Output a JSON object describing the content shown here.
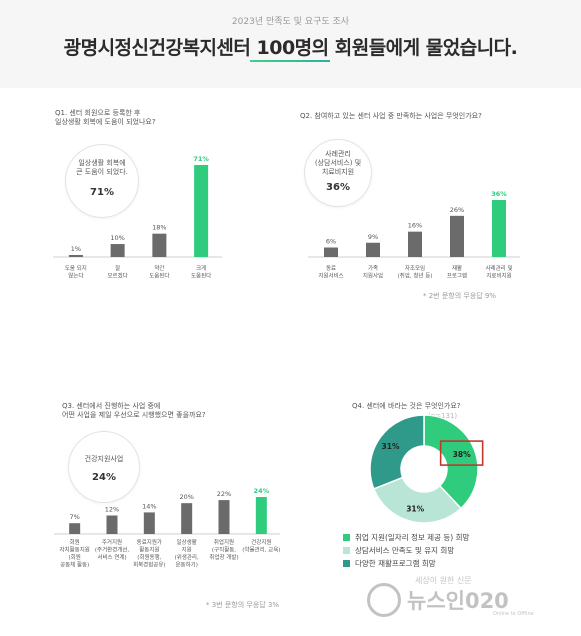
{
  "header": {
    "subtitle": "2023년 만족도 및 요구도 조사",
    "title": "광명시정신건강복지센터 100명의 회원들에게 물었습니다."
  },
  "colors": {
    "green": "#2ecc7c",
    "grey": "#6b6b6b",
    "pale": "#b9e5d6",
    "teal": "#2f9a8a",
    "highlight": "#c0392b"
  },
  "chart_data": [
    {
      "type": "bar",
      "title": "Q1. 센터 회원으로 등록한 후\n일상생활 회복에 도움이 되었나요?",
      "categories": [
        "도움 되지\n않는다",
        "잘\n모르겠다",
        "약간\n도움된다",
        "크게\n도움된다"
      ],
      "values": [
        1,
        10,
        18,
        71
      ],
      "value_labels": [
        "1%",
        "10%",
        "18%",
        "71%"
      ],
      "highlight_index": 3,
      "callout": {
        "text": "일상생활 회복에\n큰 도움이 되었다.",
        "value": "71%"
      },
      "ylim": [
        0,
        71
      ]
    },
    {
      "type": "bar",
      "title": "Q2. 참여하고 있는 센터 사업 중 만족하는 사업은 무엇인가요?",
      "categories": [
        "동료\n지원서비스",
        "가족\n지원사업",
        "자조모임\n(취업, 청년 등)",
        "재활\n프로그램",
        "사례관리 및\n지료비지원"
      ],
      "values": [
        6,
        9,
        16,
        26,
        36
      ],
      "value_labels": [
        "6%",
        "9%",
        "16%",
        "26%",
        "36%"
      ],
      "highlight_index": 4,
      "callout": {
        "text": "사례관리\n(상담서비스) 및\n치료비지원",
        "value": "36%"
      },
      "note": "* 2번 문항의 무응답 9%",
      "ylim": [
        0,
        36
      ]
    },
    {
      "type": "bar",
      "title": "Q3. 센터에서 진행하는 사업 중에\n어떤 사업을 제일 우선으로 시행했으면 좋을까요?",
      "categories": [
        "회원\n자치활동지원\n(회원\n공동체 활동)",
        "주거지원\n(주거환경개선,\n서비스 연계)",
        "동료지원가\n활동지원\n(회원동행,\n회복경험공유)",
        "일상생활\n지원\n(위생관리,\n운동하기)",
        "취업지원\n(구직활동,\n취업장 개발)",
        "건강지원\n(약물관리, 교육)"
      ],
      "values": [
        7,
        12,
        14,
        20,
        22,
        24
      ],
      "value_labels": [
        "7%",
        "12%",
        "14%",
        "20%",
        "22%",
        "24%"
      ],
      "highlight_index": 5,
      "callout": {
        "text": "건강지원사업",
        "value": "24%"
      },
      "note": "* 3번 문항의 무응답 3%",
      "ylim": [
        0,
        24
      ]
    },
    {
      "type": "pie",
      "title": "Q4. 센터에 바라는 것은 무엇인가요?",
      "note_top": "(n=131)",
      "labels": [
        "취업 지원(일자리 정보 제공 등) 희망",
        "상담서비스 만족도 및 유지 희망",
        "다양한 재활프로그램 희망"
      ],
      "values": [
        38,
        31,
        31
      ],
      "value_labels": [
        "38%",
        "31%",
        "31%"
      ],
      "colors": [
        "#2ecc7c",
        "#b9e5d6",
        "#2f9a8a"
      ]
    }
  ],
  "watermark": {
    "top": "세상이 원한 신문",
    "main": "뉴스인020",
    "sub": "Online to Offline"
  }
}
